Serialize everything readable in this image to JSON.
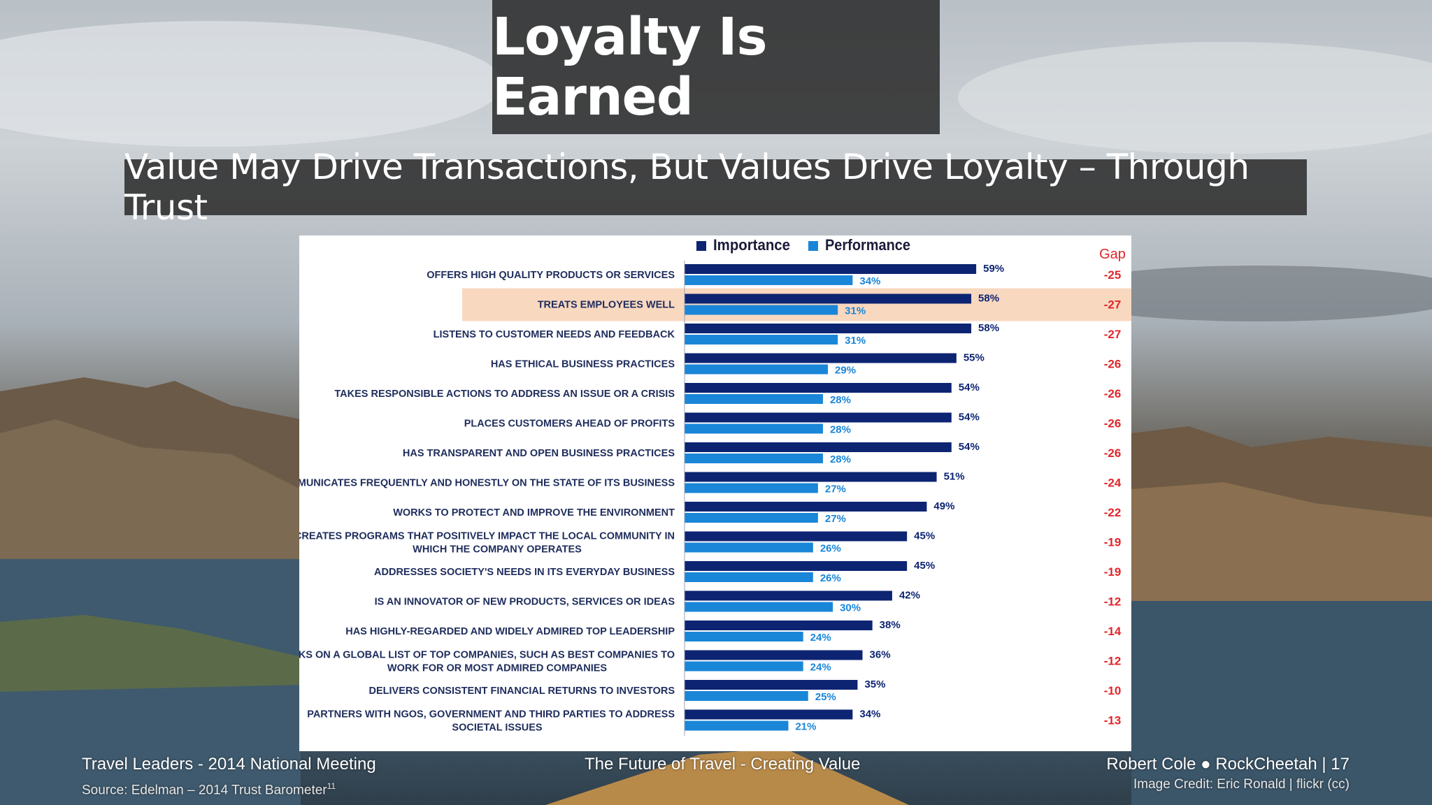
{
  "slide": {
    "title": "Loyalty Is Earned",
    "subtitle": "Value May Drive Transactions, But Values Drive Loyalty – Through Trust"
  },
  "footer": {
    "left": "Travel Leaders - 2014 National Meeting",
    "source": "Source:  Edelman – 2014 Trust Barometer",
    "source_superscript": "11",
    "center": "The Future of Travel - Creating Value",
    "right": "Robert Cole ● RockCheetah | 17",
    "credit": "Image Credit:  Eric Ronald | flickr (cc)"
  },
  "colors": {
    "importance": "#0d2472",
    "performance": "#1a86d8",
    "gap": "#e0262b",
    "highlight": "#f9d8c0",
    "label": "#1f2d5c"
  },
  "chart_data": {
    "type": "bar",
    "orientation": "horizontal",
    "gap_header": "Gap",
    "highlighted_category": "TREATS EMPLOYEES WELL",
    "legend_position": "top",
    "categories": [
      "OFFERS HIGH QUALITY PRODUCTS OR SERVICES",
      "TREATS EMPLOYEES WELL",
      "LISTENS TO CUSTOMER NEEDS AND FEEDBACK",
      "HAS ETHICAL BUSINESS PRACTICES",
      "TAKES RESPONSIBLE ACTIONS TO ADDRESS AN ISSUE OR A CRISIS",
      "PLACES CUSTOMERS AHEAD OF PROFITS",
      "HAS TRANSPARENT AND OPEN BUSINESS PRACTICES",
      "COMMUNICATES FREQUENTLY AND HONESTLY ON THE STATE OF ITS BUSINESS",
      "WORKS TO PROTECT AND IMPROVE THE ENVIRONMENT",
      "CREATES PROGRAMS THAT POSITIVELY IMPACT THE LOCAL COMMUNITY IN WHICH THE COMPANY OPERATES",
      "ADDRESSES SOCIETY'S NEEDS IN ITS EVERYDAY BUSINESS",
      "IS AN INNOVATOR OF NEW PRODUCTS, SERVICES OR IDEAS",
      "HAS HIGHLY-REGARDED AND WIDELY ADMIRED TOP LEADERSHIP",
      "RANKS ON A GLOBAL LIST OF TOP COMPANIES, SUCH AS BEST COMPANIES TO WORK FOR OR MOST ADMIRED COMPANIES",
      "DELIVERS CONSISTENT FINANCIAL RETURNS TO INVESTORS",
      "PARTNERS WITH NGOS, GOVERNMENT AND THIRD PARTIES TO ADDRESS SOCIETAL ISSUES"
    ],
    "series": [
      {
        "name": "Importance",
        "values": [
          59,
          58,
          58,
          55,
          54,
          54,
          54,
          51,
          49,
          45,
          45,
          42,
          38,
          36,
          35,
          34
        ]
      },
      {
        "name": "Performance",
        "values": [
          34,
          31,
          31,
          29,
          28,
          28,
          28,
          27,
          27,
          26,
          26,
          30,
          24,
          24,
          25,
          21
        ]
      }
    ],
    "gap": [
      -25,
      -27,
      -27,
      -26,
      -26,
      -26,
      -26,
      -24,
      -22,
      -19,
      -19,
      -12,
      -14,
      -12,
      -10,
      -13
    ],
    "value_suffix": "%",
    "xlim": [
      0,
      100
    ]
  }
}
